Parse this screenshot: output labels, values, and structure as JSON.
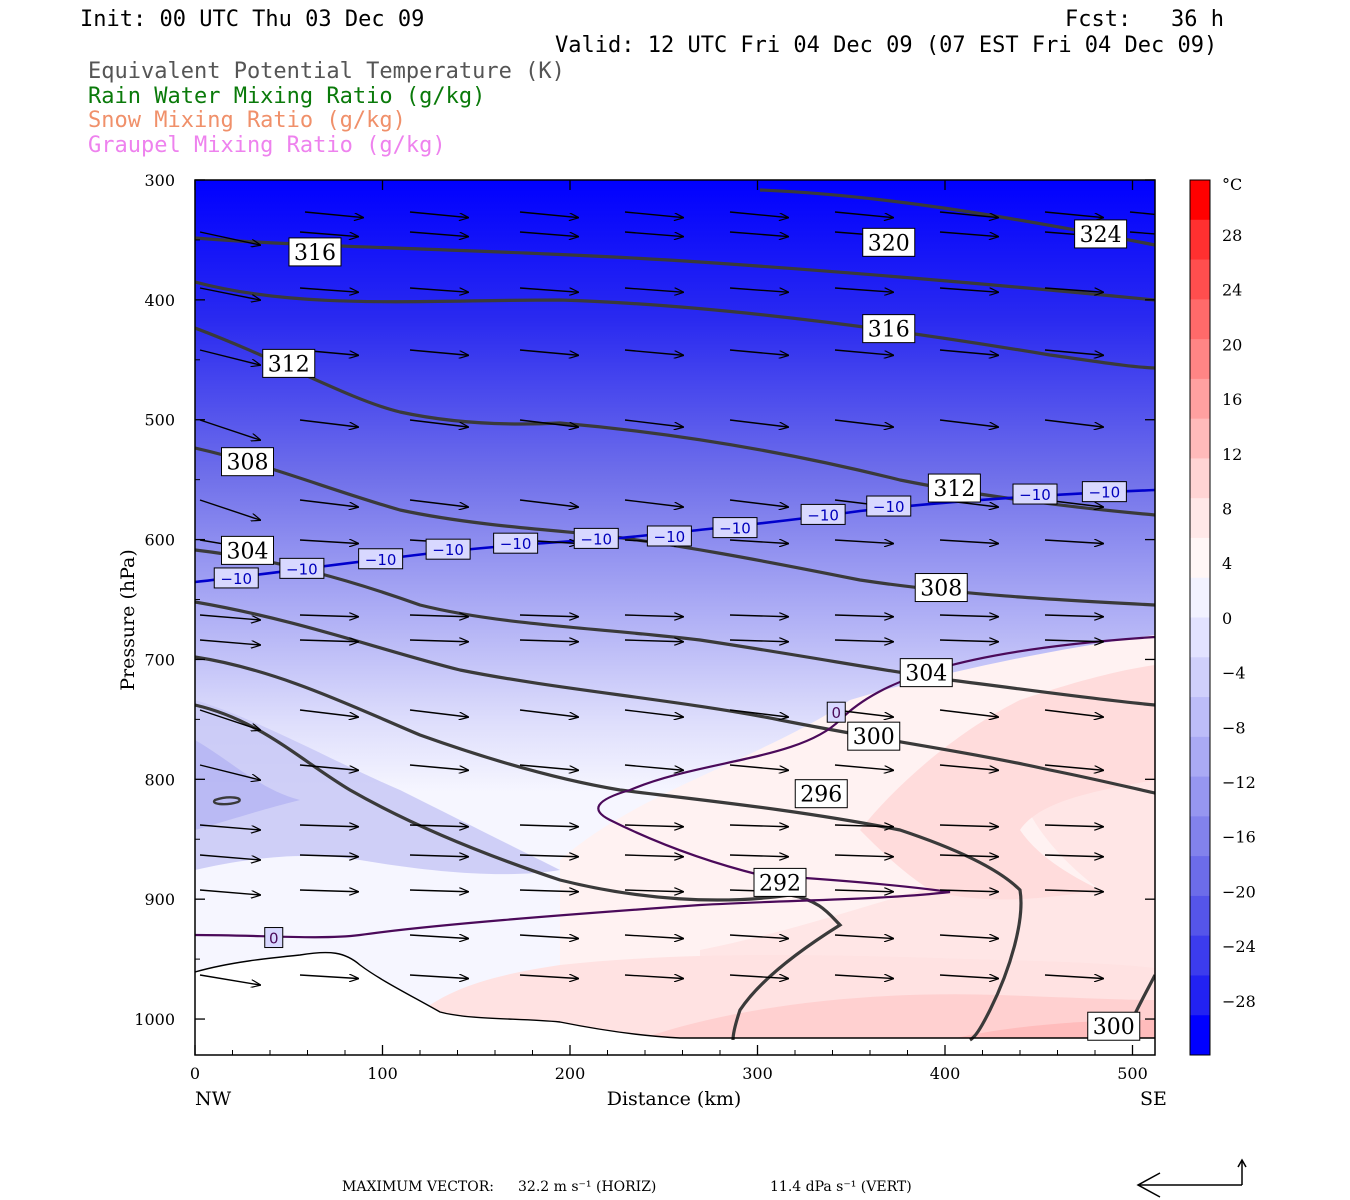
{
  "header": {
    "init": "Init: 00 UTC Thu 03 Dec 09",
    "fcst": "Fcst:   36 h",
    "valid": "Valid: 12 UTC Fri 04 Dec 09 (07 EST Fri 04 Dec 09)"
  },
  "legend": [
    {
      "text": "Equivalent Potential Temperature (K)",
      "color": "#555555"
    },
    {
      "text": "Rain Water Mixing Ratio (g/kg)",
      "color": "#0a7a0a"
    },
    {
      "text": "Snow Mixing Ratio (g/kg)",
      "color": "#f0906a"
    },
    {
      "text": "Graupel Mixing Ratio (g/kg)",
      "color": "#ee82ee"
    }
  ],
  "footer": {
    "max_vector": "MAXIMUM VECTOR:",
    "horiz": "32.2 m s⁻¹ (HORIZ)",
    "vert": "11.4 dPa s⁻¹ (VERT)"
  },
  "chart_data": {
    "type": "contour-cross-section",
    "xlabel": "Distance (km)",
    "ylabel": "Pressure (hPa)",
    "xlim": [
      0,
      512
    ],
    "ylim": [
      1030,
      300
    ],
    "x_ticks": [
      0,
      100,
      200,
      300,
      400,
      500
    ],
    "y_ticks": [
      300,
      400,
      500,
      600,
      700,
      800,
      900,
      1000
    ],
    "x_end_labels": {
      "left": "NW",
      "right": "SE"
    },
    "colorbar": {
      "unit": "°C",
      "ticks": [
        28,
        24,
        20,
        16,
        12,
        8,
        4,
        0,
        -4,
        -8,
        -12,
        -16,
        -20,
        -24,
        -28
      ],
      "colors": [
        "#ff0000",
        "#ff3030",
        "#ff4e4e",
        "#ff6a6a",
        "#ff8585",
        "#ffa0a0",
        "#ffbaba",
        "#ffd4d4",
        "#ffe8e8",
        "#fff6f6",
        "#f2f2ff",
        "#e2e2ff",
        "#d0d0fb",
        "#bdbdf8",
        "#aaaaf4",
        "#9696f0",
        "#8282ec",
        "#6c6cea",
        "#5555ea",
        "#3c3ced",
        "#2222f2",
        "#0000ff"
      ]
    },
    "theta_e_labels": [
      {
        "text": "316",
        "x": 64,
        "p": 360
      },
      {
        "text": "320",
        "x": 370,
        "p": 352
      },
      {
        "text": "324",
        "x": 483,
        "p": 345
      },
      {
        "text": "316",
        "x": 370,
        "p": 424
      },
      {
        "text": "312",
        "x": 50,
        "p": 453
      },
      {
        "text": "312",
        "x": 405,
        "p": 557
      },
      {
        "text": "308",
        "x": 28,
        "p": 535
      },
      {
        "text": "308",
        "x": 398,
        "p": 640
      },
      {
        "text": "304",
        "x": 28,
        "p": 609
      },
      {
        "text": "304",
        "x": 390,
        "p": 711
      },
      {
        "text": "300",
        "x": 362,
        "p": 764
      },
      {
        "text": "300",
        "x": 490,
        "p": 1006
      },
      {
        "text": "296",
        "x": 334,
        "p": 812
      },
      {
        "text": "292",
        "x": 312,
        "p": 886
      }
    ],
    "temp_labels": [
      {
        "text": "−10",
        "x": 22,
        "p": 632
      },
      {
        "text": "−10",
        "x": 57,
        "p": 624
      },
      {
        "text": "−10",
        "x": 99,
        "p": 616
      },
      {
        "text": "−10",
        "x": 135,
        "p": 608
      },
      {
        "text": "−10",
        "x": 171,
        "p": 603
      },
      {
        "text": "−10",
        "x": 214,
        "p": 599
      },
      {
        "text": "−10",
        "x": 253,
        "p": 597
      },
      {
        "text": "−10",
        "x": 288,
        "p": 590
      },
      {
        "text": "−10",
        "x": 335,
        "p": 579
      },
      {
        "text": "−10",
        "x": 370,
        "p": 572
      },
      {
        "text": "−10",
        "x": 448,
        "p": 562
      },
      {
        "text": "−10",
        "x": 485,
        "p": 560
      },
      {
        "text": "0",
        "x": 342,
        "p": 744
      },
      {
        "text": "0",
        "x": 42,
        "p": 932
      }
    ]
  }
}
